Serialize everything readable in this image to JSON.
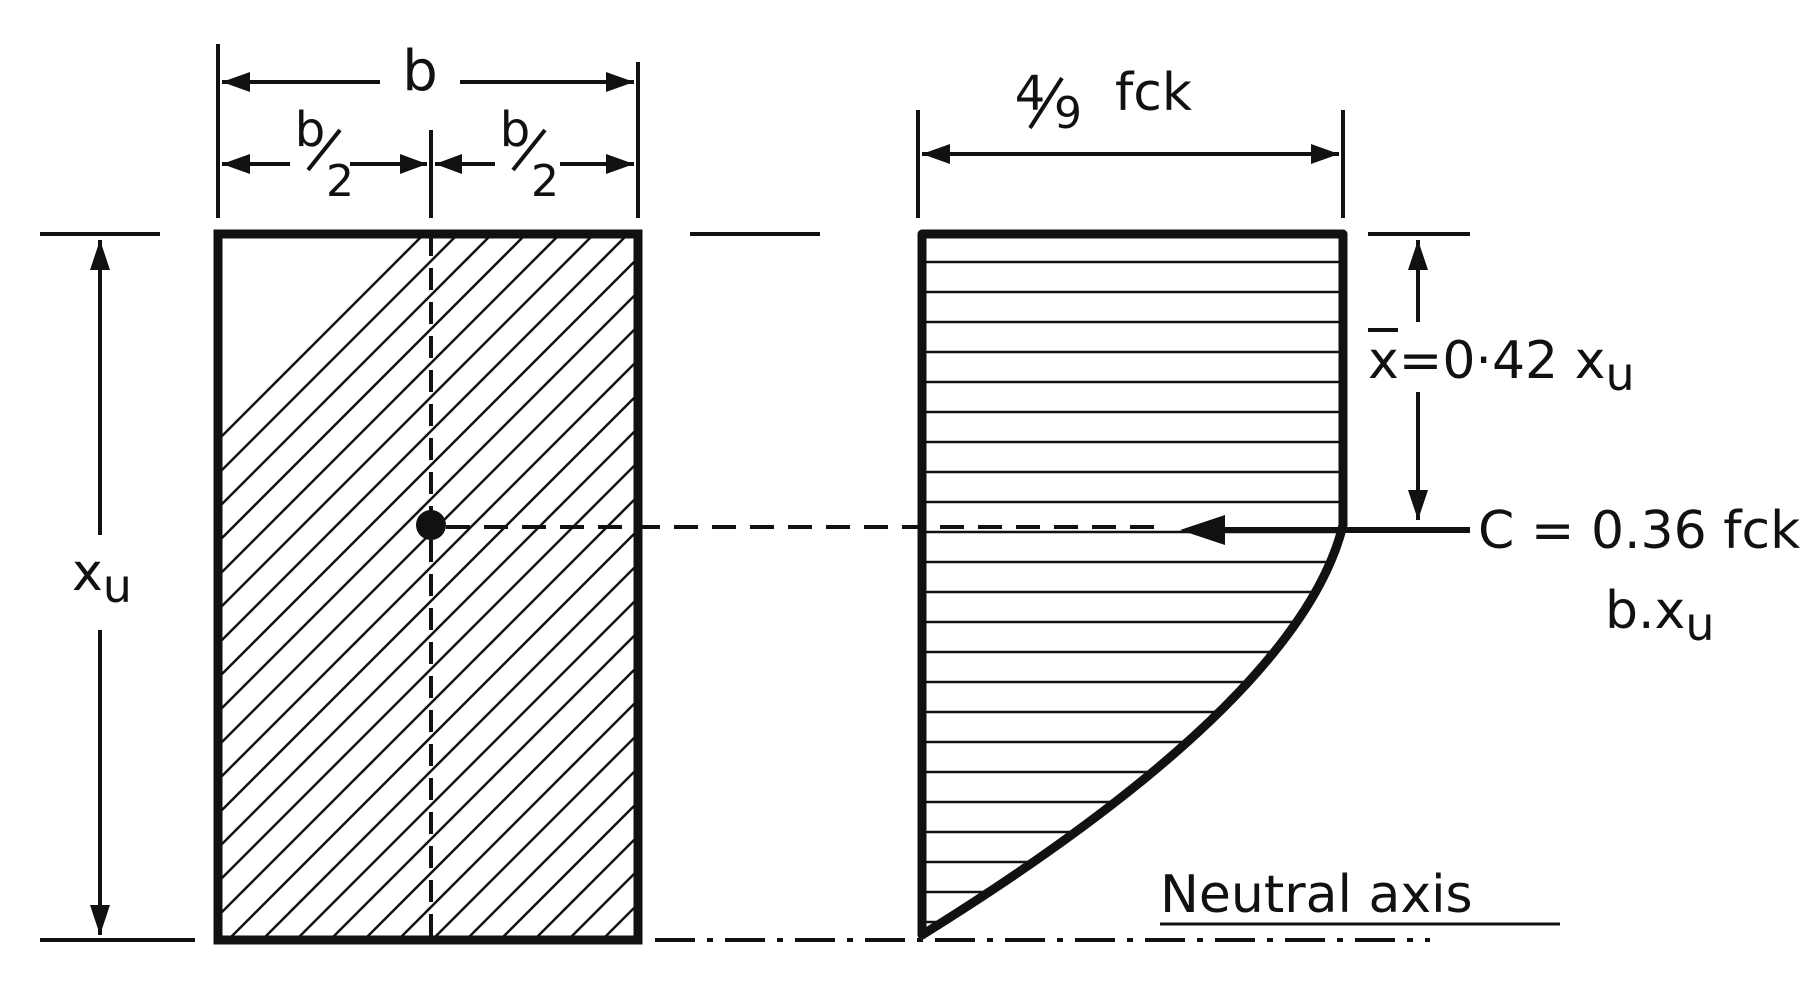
{
  "diagram": {
    "ink_color": "#111111",
    "background_color": "#ffffff",
    "section": {
      "width_label": "b",
      "half_width_left": {
        "num": "b",
        "den": "2"
      },
      "half_width_right": {
        "num": "b",
        "den": "2"
      },
      "depth_label": {
        "main": "x",
        "sub": "u"
      }
    },
    "stress_block": {
      "max_stress_label": {
        "num": "4",
        "den": "9",
        "rest": "fck"
      },
      "centroid_label": {
        "bar": "x",
        "rest": "=0·42 x",
        "sub": "u"
      },
      "force_label": {
        "line1": "C = 0.36 fck",
        "line2_main": "b.x",
        "line2_sub": "u"
      },
      "neutral_axis_label": "Neutral axis"
    }
  }
}
